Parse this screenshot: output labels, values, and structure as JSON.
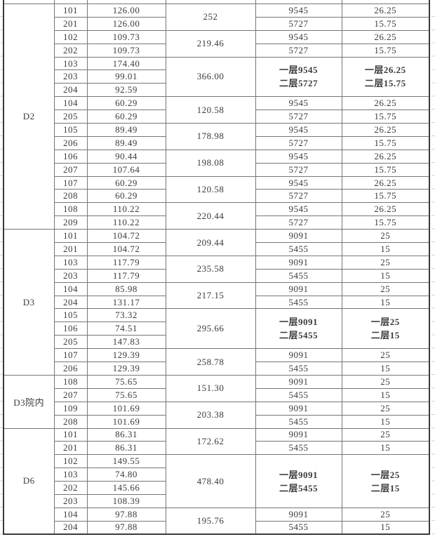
{
  "colors": {
    "inner_border": "#767676",
    "outer_border": "#3a3a3a",
    "text": "#3b3b3b",
    "bold_text": "#141414",
    "gridline_stub": "#ccd4dc"
  },
  "table": {
    "sections": [
      {
        "name": "D2",
        "groups": [
          {
            "units": [
              [
                "101",
                "126.00"
              ],
              [
                "201",
                "126.00"
              ]
            ],
            "total": "252",
            "five": [
              [
                "9545",
                "26.25"
              ],
              [
                "5727",
                "15.75"
              ]
            ]
          },
          {
            "units": [
              [
                "102",
                "109.73"
              ],
              [
                "202",
                "109.73"
              ]
            ],
            "total": "219.46",
            "five": [
              [
                "9545",
                "26.25"
              ],
              [
                "5727",
                "15.75"
              ]
            ]
          },
          {
            "units": [
              [
                "103",
                "174.40"
              ],
              [
                "203",
                "99.01"
              ],
              [
                "204",
                "92.59"
              ]
            ],
            "total": "366.00",
            "five_merged": [
              [
                "一层9545",
                "二层5727"
              ],
              [
                "一层26.25",
                "二层15.75"
              ]
            ]
          },
          {
            "units": [
              [
                "104",
                "60.29"
              ],
              [
                "205",
                "60.29"
              ]
            ],
            "total": "120.58",
            "five": [
              [
                "9545",
                "26.25"
              ],
              [
                "5727",
                "15.75"
              ]
            ]
          },
          {
            "units": [
              [
                "105",
                "89.49"
              ],
              [
                "206",
                "89.49"
              ]
            ],
            "total": "178.98",
            "five": [
              [
                "9545",
                "26.25"
              ],
              [
                "5727",
                "15.75"
              ]
            ]
          },
          {
            "units": [
              [
                "106",
                "90.44"
              ],
              [
                "207",
                "107.64"
              ]
            ],
            "total": "198.08",
            "five": [
              [
                "9545",
                "26.25"
              ],
              [
                "5727",
                "15.75"
              ]
            ]
          },
          {
            "units": [
              [
                "107",
                "60.29"
              ],
              [
                "208",
                "60.29"
              ]
            ],
            "total": "120.58",
            "five": [
              [
                "9545",
                "26.25"
              ],
              [
                "5727",
                "15.75"
              ]
            ]
          },
          {
            "units": [
              [
                "108",
                "110.22"
              ],
              [
                "209",
                "110.22"
              ]
            ],
            "total": "220.44",
            "five": [
              [
                "9545",
                "26.25"
              ],
              [
                "5727",
                "15.75"
              ]
            ]
          }
        ]
      },
      {
        "name": "D3",
        "groups": [
          {
            "units": [
              [
                "101",
                "104.72"
              ],
              [
                "201",
                "104.72"
              ]
            ],
            "total": "209.44",
            "five": [
              [
                "9091",
                "25"
              ],
              [
                "5455",
                "15"
              ]
            ]
          },
          {
            "units": [
              [
                "103",
                "117.79"
              ],
              [
                "203",
                "117.79"
              ]
            ],
            "total": "235.58",
            "five": [
              [
                "9091",
                "25"
              ],
              [
                "5455",
                "15"
              ]
            ]
          },
          {
            "units": [
              [
                "104",
                "85.98"
              ],
              [
                "204",
                "131.17"
              ]
            ],
            "total": "217.15",
            "five": [
              [
                "9091",
                "25"
              ],
              [
                "5455",
                "15"
              ]
            ]
          },
          {
            "units": [
              [
                "105",
                "73.32"
              ],
              [
                "106",
                "74.51"
              ],
              [
                "205",
                "147.83"
              ]
            ],
            "total": "295.66",
            "five_merged": [
              [
                "一层9091",
                "二层5455"
              ],
              [
                "一层25",
                "二层15"
              ]
            ]
          },
          {
            "units": [
              [
                "107",
                "129.39"
              ],
              [
                "206",
                "129.39"
              ]
            ],
            "total": "258.78",
            "five": [
              [
                "9091",
                "25"
              ],
              [
                "5455",
                "15"
              ]
            ]
          }
        ]
      },
      {
        "name": "D3院内",
        "groups": [
          {
            "units": [
              [
                "108",
                "75.65"
              ],
              [
                "207",
                "75.65"
              ]
            ],
            "total": "151.30",
            "five": [
              [
                "9091",
                "25"
              ],
              [
                "5455",
                "15"
              ]
            ]
          },
          {
            "units": [
              [
                "109",
                "101.69"
              ],
              [
                "208",
                "101.69"
              ]
            ],
            "total": "203.38",
            "five": [
              [
                "9091",
                "25"
              ],
              [
                "5455",
                "15"
              ]
            ]
          }
        ]
      },
      {
        "name": "D6",
        "groups": [
          {
            "units": [
              [
                "101",
                "86.31"
              ],
              [
                "201",
                "86.31"
              ]
            ],
            "total": "172.62",
            "five": [
              [
                "9091",
                "25"
              ],
              [
                "5455",
                "15"
              ]
            ]
          },
          {
            "units": [
              [
                "102",
                "149.55"
              ],
              [
                "103",
                "74.80"
              ],
              [
                "202",
                "145.66"
              ],
              [
                "203",
                "108.39"
              ]
            ],
            "total": "478.40",
            "five_merged": [
              [
                "一层9091",
                "二层5455"
              ],
              [
                "一层25",
                "二层15"
              ]
            ]
          },
          {
            "units": [
              [
                "104",
                "97.88"
              ],
              [
                "204",
                "97.88"
              ]
            ],
            "total": "195.76",
            "five": [
              [
                "9091",
                "25"
              ],
              [
                "5455",
                "15"
              ]
            ]
          }
        ]
      }
    ]
  }
}
